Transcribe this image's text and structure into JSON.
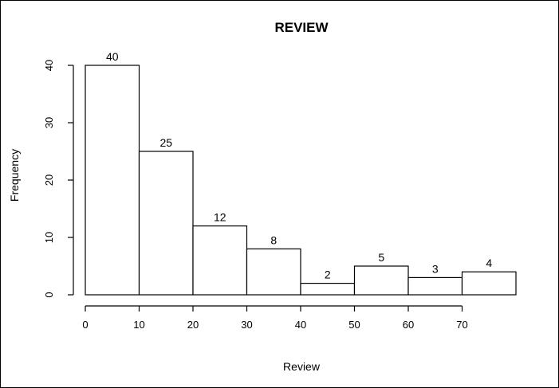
{
  "chart_data": {
    "type": "bar",
    "title": "REVIEW",
    "xlabel": "Review",
    "ylabel": "Frequency",
    "bins": [
      {
        "start": 0,
        "end": 10,
        "count": 40
      },
      {
        "start": 10,
        "end": 20,
        "count": 25
      },
      {
        "start": 20,
        "end": 30,
        "count": 12
      },
      {
        "start": 30,
        "end": 40,
        "count": 8
      },
      {
        "start": 40,
        "end": 50,
        "count": 2
      },
      {
        "start": 50,
        "end": 60,
        "count": 5
      },
      {
        "start": 60,
        "end": 70,
        "count": 3
      },
      {
        "start": 70,
        "end": 80,
        "count": 4
      }
    ],
    "data_labels": [
      "40",
      "25",
      "12",
      "8",
      "2",
      "5",
      "3",
      "4"
    ],
    "x_ticks": [
      "0",
      "10",
      "20",
      "30",
      "40",
      "50",
      "60",
      "70"
    ],
    "y_ticks": [
      "0",
      "10",
      "20",
      "30",
      "40"
    ],
    "xlim": [
      0,
      80
    ],
    "ylim": [
      0,
      40
    ],
    "grid": false,
    "colors": {
      "bar_fill": "#ffffff",
      "bar_stroke": "#000000",
      "background": "#ffffff"
    }
  }
}
